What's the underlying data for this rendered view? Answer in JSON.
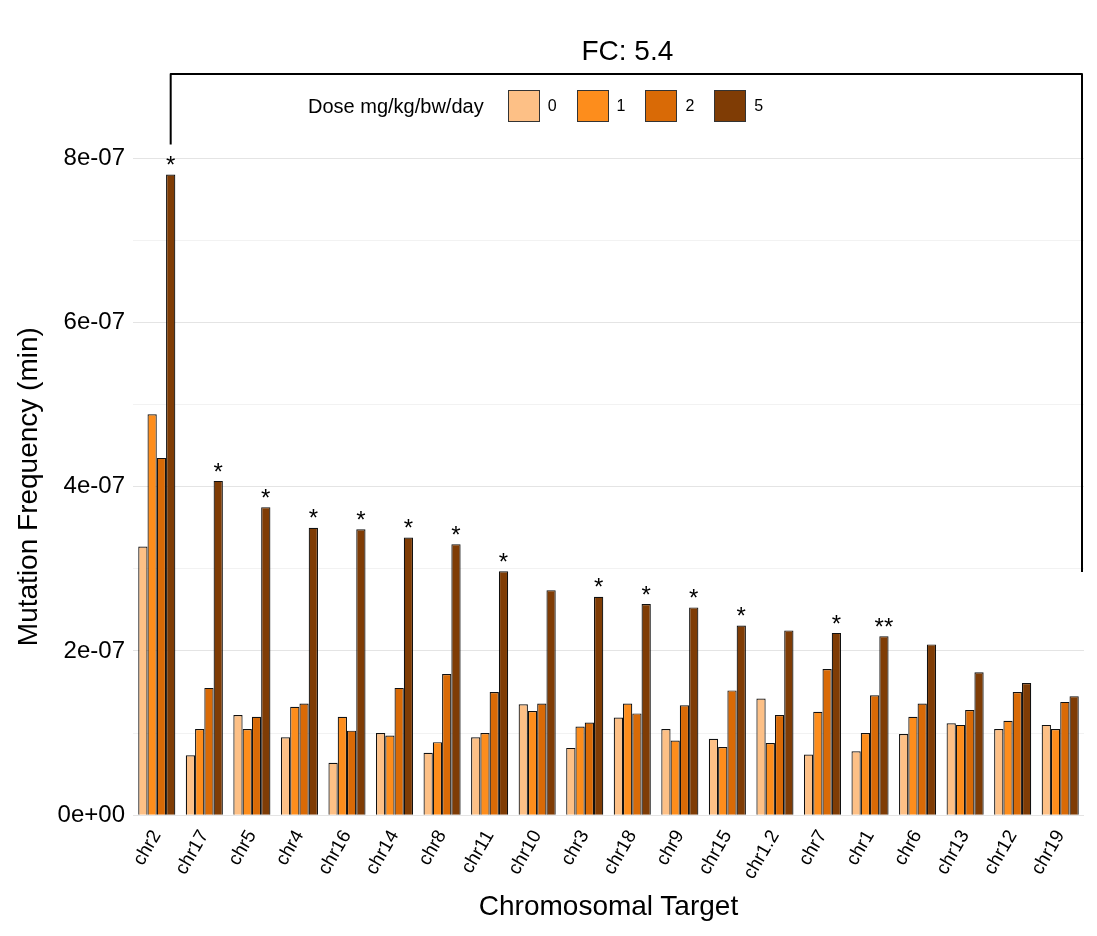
{
  "chart_data": {
    "type": "bar",
    "xlabel": "Chromosomal Target",
    "ylabel": "Mutation Frequency (min)",
    "legend_title": "Dose mg/kg/bw/day",
    "legend": "top",
    "grid": "y",
    "categories": [
      "chr2",
      "chr17",
      "chr5",
      "chr4",
      "chr16",
      "chr14",
      "chr8",
      "chr11",
      "chr10",
      "chr3",
      "chr18",
      "chr9",
      "chr15",
      "chr1.2",
      "chr7",
      "chr1",
      "chr6",
      "chr13",
      "chr12",
      "chr19"
    ],
    "series": [
      {
        "name": "0",
        "color": "#fdc086",
        "values": [
          3.27e-07,
          7.3e-08,
          1.22e-07,
          9.5e-08,
          6.4e-08,
          1e-07,
          7.6e-08,
          9.5e-08,
          1.35e-07,
          8.2e-08,
          1.19e-07,
          1.05e-07,
          9.3e-08,
          1.42e-07,
          7.4e-08,
          7.8e-08,
          9.9e-08,
          1.12e-07,
          1.05e-07,
          1.1e-07
        ]
      },
      {
        "name": "1",
        "color": "#fd8d1c",
        "values": [
          4.88e-07,
          1.05e-07,
          1.05e-07,
          1.32e-07,
          1.2e-07,
          9.7e-08,
          8.9e-08,
          1e-07,
          1.27e-07,
          1.08e-07,
          1.36e-07,
          9.1e-08,
          8.3e-08,
          8.8e-08,
          1.26e-07,
          1e-07,
          1.2e-07,
          1.1e-07,
          1.15e-07,
          1.05e-07
        ]
      },
      {
        "name": "2",
        "color": "#d96a06",
        "values": [
          4.35e-07,
          1.55e-07,
          1.2e-07,
          1.36e-07,
          1.03e-07,
          1.55e-07,
          1.72e-07,
          1.5e-07,
          1.36e-07,
          1.13e-07,
          1.24e-07,
          1.34e-07,
          1.52e-07,
          1.22e-07,
          1.78e-07,
          1.46e-07,
          1.36e-07,
          1.28e-07,
          1.5e-07,
          1.38e-07
        ]
      },
      {
        "name": "5",
        "color": "#7f3c05",
        "values": [
          7.8e-07,
          4.07e-07,
          3.75e-07,
          3.5e-07,
          3.48e-07,
          3.38e-07,
          3.3e-07,
          2.97e-07,
          2.74e-07,
          2.66e-07,
          2.57e-07,
          2.53e-07,
          2.31e-07,
          2.25e-07,
          2.22e-07,
          2.18e-07,
          2.08e-07,
          1.74e-07,
          1.61e-07,
          1.45e-07
        ],
        "value_labels": [
          "*",
          "*",
          "*",
          "*",
          "*",
          "*",
          "*",
          "*",
          null,
          "*",
          "*",
          "*",
          "*",
          null,
          "*",
          "**",
          null,
          null,
          null,
          null
        ]
      }
    ],
    "ylim": [
      0,
      8e-07
    ],
    "yticks": [
      {
        "value": 0,
        "label": "0e+00"
      },
      {
        "value": 1e-07,
        "label": null
      },
      {
        "value": 2e-07,
        "label": "2e-07"
      },
      {
        "value": 3e-07,
        "label": null
      },
      {
        "value": 4e-07,
        "label": "4e-07"
      },
      {
        "value": 5e-07,
        "label": null
      },
      {
        "value": 6e-07,
        "label": "6e-07"
      },
      {
        "value": 7e-07,
        "label": null
      },
      {
        "value": 8e-07,
        "label": "8e-07"
      }
    ],
    "annotations": [
      "FC: 5.4"
    ]
  }
}
